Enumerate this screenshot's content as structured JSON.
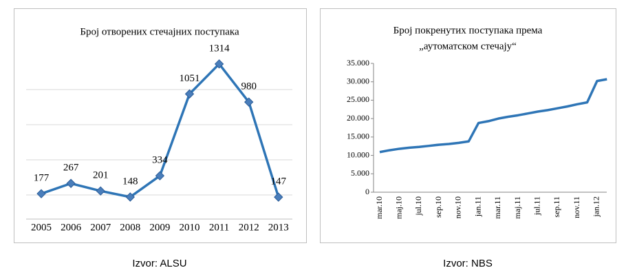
{
  "chart_data": [
    {
      "type": "line",
      "title": "Број отворених стечајних поступака",
      "source": "Izvor: ALSU",
      "categories": [
        "2005",
        "2006",
        "2007",
        "2008",
        "2009",
        "2010",
        "2011",
        "2012",
        "2013"
      ],
      "values": [
        177,
        267,
        201,
        148,
        334,
        1051,
        1314,
        980,
        147
      ],
      "color": "#2e75b6",
      "marker": "diamond",
      "ylim": [
        0,
        1500
      ],
      "grid": true
    },
    {
      "type": "line",
      "title": "Број покренутих поступака према",
      "subtitle": "„аутоматском стечају“",
      "source": "Izvor: NBS",
      "categories": [
        "mar.10",
        null,
        "maj.10",
        null,
        "jul.10",
        null,
        "sep.10",
        null,
        "nov.10",
        null,
        "jan.11",
        null,
        "mar.11",
        null,
        "maj.11",
        null,
        "jul.11",
        null,
        "sep.11",
        null,
        "nov.11",
        null,
        "jan.12",
        null
      ],
      "values": [
        10900,
        11400,
        11800,
        12100,
        12300,
        12600,
        12900,
        13100,
        13400,
        13800,
        18800,
        19300,
        20000,
        20500,
        20900,
        21400,
        21900,
        22300,
        22800,
        23300,
        23900,
        24400,
        30200,
        30700
      ],
      "color": "#2e75b6",
      "ylim": [
        0,
        35000
      ],
      "yticks": [
        0,
        {
          "value": 5000,
          "label": "5.000"
        },
        {
          "value": 10000,
          "label": "10.000"
        },
        {
          "value": 15000,
          "label": "15.000"
        },
        {
          "value": 20000,
          "label": "20.000"
        },
        {
          "value": 25000,
          "label": "25.000"
        },
        {
          "value": 30000,
          "label": "30.000"
        },
        {
          "value": 35000,
          "label": "35.000"
        }
      ]
    }
  ]
}
